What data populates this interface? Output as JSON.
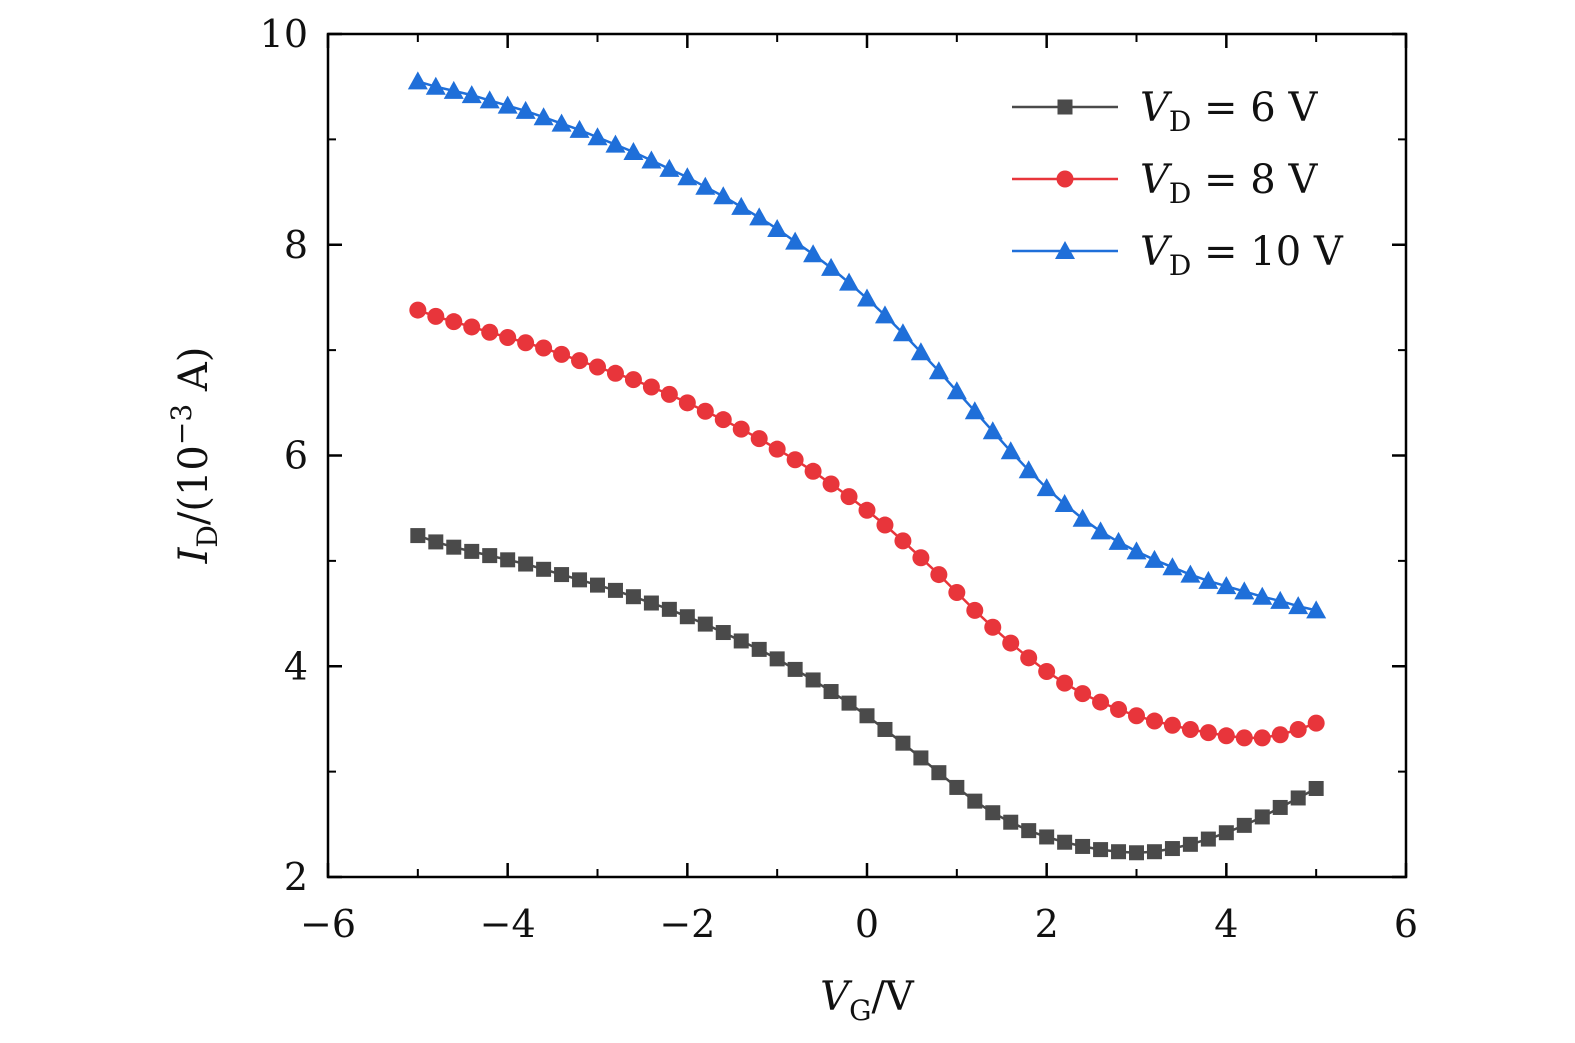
{
  "chart_data": {
    "type": "line",
    "title": "",
    "xlabel": {
      "main": "V",
      "sub": "G",
      "rest": "/V"
    },
    "ylabel": {
      "main": "I",
      "sub": "D",
      "rest": "/(10",
      "exp": "−3",
      "unit": " A)"
    },
    "xlim": [
      -6,
      6
    ],
    "ylim": [
      2,
      10
    ],
    "x_ticks": [
      -6,
      -4,
      -2,
      0,
      2,
      4,
      6
    ],
    "x_tick_labels": [
      "−6",
      "−4",
      "−2",
      "0",
      "2",
      "4",
      "6"
    ],
    "y_ticks": [
      2,
      4,
      6,
      8,
      10
    ],
    "y_tick_labels": [
      "2",
      "4",
      "6",
      "8",
      "10"
    ],
    "legend_position": "top-right",
    "x": [
      -5.0,
      -4.8,
      -4.6,
      -4.4,
      -4.2,
      -4.0,
      -3.8,
      -3.6,
      -3.4,
      -3.2,
      -3.0,
      -2.8,
      -2.6,
      -2.4,
      -2.2,
      -2.0,
      -1.8,
      -1.6,
      -1.4,
      -1.2,
      -1.0,
      -0.8,
      -0.6,
      -0.4,
      -0.2,
      0.0,
      0.2,
      0.4,
      0.6,
      0.8,
      1.0,
      1.2,
      1.4,
      1.6,
      1.8,
      2.0,
      2.2,
      2.4,
      2.6,
      2.8,
      3.0,
      3.2,
      3.4,
      3.6,
      3.8,
      4.0,
      4.2,
      4.4,
      4.6,
      4.8,
      5.0
    ],
    "series": [
      {
        "name": "V_D = 6 V",
        "label": {
          "main": "V",
          "sub": "D",
          "rest": " = 6  V"
        },
        "color": "#4a4a4a",
        "marker": "square",
        "values": [
          5.24,
          5.18,
          5.13,
          5.09,
          5.05,
          5.01,
          4.97,
          4.92,
          4.87,
          4.82,
          4.77,
          4.72,
          4.66,
          4.6,
          4.54,
          4.47,
          4.4,
          4.32,
          4.24,
          4.16,
          4.07,
          3.97,
          3.87,
          3.76,
          3.65,
          3.53,
          3.4,
          3.27,
          3.13,
          2.99,
          2.85,
          2.72,
          2.61,
          2.52,
          2.44,
          2.38,
          2.33,
          2.29,
          2.26,
          2.24,
          2.23,
          2.24,
          2.27,
          2.31,
          2.36,
          2.42,
          2.49,
          2.57,
          2.66,
          2.75,
          2.84
        ]
      },
      {
        "name": "V_D = 8 V",
        "label": {
          "main": "V",
          "sub": "D",
          "rest": " = 8  V"
        },
        "color": "#e8353b",
        "marker": "circle",
        "values": [
          7.38,
          7.32,
          7.27,
          7.22,
          7.17,
          7.12,
          7.07,
          7.02,
          6.96,
          6.9,
          6.84,
          6.78,
          6.72,
          6.65,
          6.58,
          6.5,
          6.42,
          6.34,
          6.25,
          6.16,
          6.06,
          5.96,
          5.85,
          5.73,
          5.61,
          5.48,
          5.34,
          5.19,
          5.03,
          4.87,
          4.7,
          4.53,
          4.37,
          4.22,
          4.08,
          3.95,
          3.84,
          3.74,
          3.66,
          3.59,
          3.53,
          3.48,
          3.44,
          3.4,
          3.37,
          3.34,
          3.32,
          3.32,
          3.35,
          3.4,
          3.46
        ]
      },
      {
        "name": "V_D = 10 V",
        "label": {
          "main": "V",
          "sub": "D",
          "rest": " = 10  V"
        },
        "color": "#1f6fd9",
        "marker": "triangle",
        "values": [
          9.55,
          9.5,
          9.46,
          9.42,
          9.37,
          9.32,
          9.27,
          9.21,
          9.15,
          9.09,
          9.02,
          8.95,
          8.88,
          8.8,
          8.72,
          8.64,
          8.55,
          8.46,
          8.36,
          8.26,
          8.15,
          8.03,
          7.91,
          7.78,
          7.64,
          7.49,
          7.33,
          7.16,
          6.98,
          6.8,
          6.61,
          6.42,
          6.23,
          6.04,
          5.86,
          5.69,
          5.54,
          5.4,
          5.28,
          5.18,
          5.09,
          5.01,
          4.94,
          4.87,
          4.81,
          4.76,
          4.71,
          4.66,
          4.62,
          4.57,
          4.53
        ]
      }
    ]
  }
}
